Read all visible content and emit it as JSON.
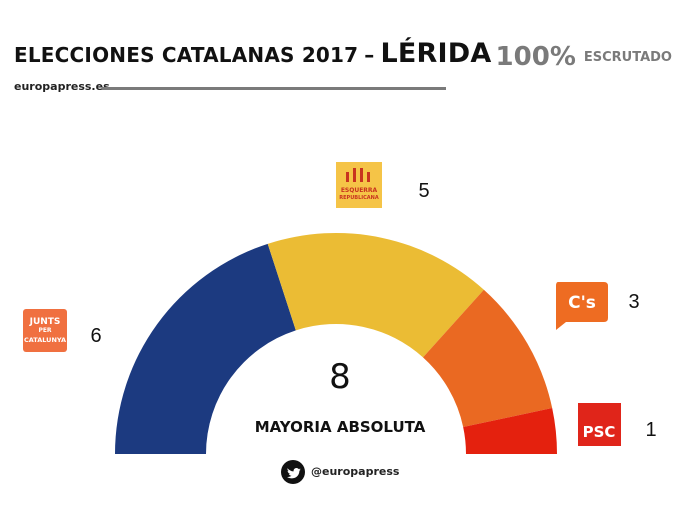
{
  "header": {
    "title": "ELECCIONES CATALANAS 2017",
    "dash": "–",
    "city": "LÉRIDA",
    "scrutiny_pct": "100%",
    "scrutiny_label": "ESCRUTADO",
    "brand": "europapress.es"
  },
  "chart_data": {
    "type": "pie",
    "subtype": "parliament-semicircle",
    "total_seats": 15,
    "majority_value": "8",
    "majority_label": "MAYORIA ABSOLUTA",
    "series": [
      {
        "name": "JUNTS PER CATALUNYA",
        "value": 6,
        "label": "6",
        "color": "#1c3a80",
        "logo_color": "#f07040"
      },
      {
        "name": "ESQUERRA REPUBLICANA",
        "value": 5,
        "label": "5",
        "color": "#ebbc34",
        "logo_color": "#f5c447",
        "logo_text_color": "#c8331f"
      },
      {
        "name": "C's",
        "value": 3,
        "label": "3",
        "color": "#ea6922",
        "logo_color": "#ee6c22"
      },
      {
        "name": "PSC",
        "value": 1,
        "label": "1",
        "color": "#e4210e",
        "logo_color": "#e0251a"
      }
    ],
    "logos": {
      "junts_line1": "JUNTS",
      "junts_per": "PER",
      "junts_line2": "CATALUNYA",
      "erc_line1": "ESQUERRA",
      "erc_line2": "REPUBLICANA",
      "cs": "C's",
      "psc": "PSC"
    }
  },
  "footer": {
    "twitter_icon": "twitter-bird-icon",
    "handle": "@europapress"
  }
}
